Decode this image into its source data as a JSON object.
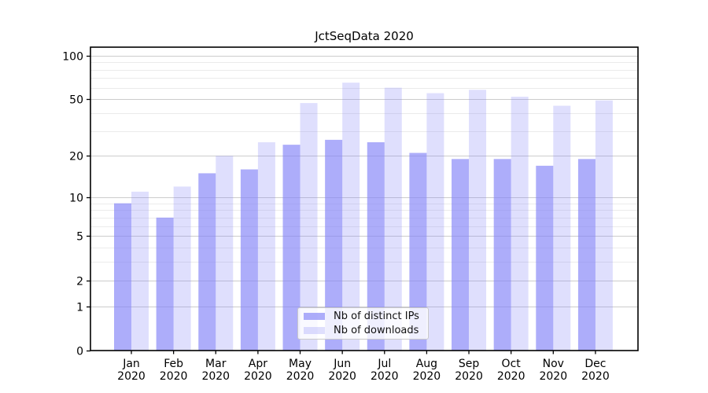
{
  "chart_data": {
    "type": "bar",
    "title": "JctSeqData 2020",
    "categories": [
      "Jan",
      "Feb",
      "Mar",
      "Apr",
      "May",
      "Jun",
      "Jul",
      "Aug",
      "Sep",
      "Oct",
      "Nov",
      "Dec"
    ],
    "x_year_label": "2020",
    "series": [
      {
        "name": "Nb of distinct IPs",
        "color": "rgba(130,130,248,0.66)",
        "values": [
          9,
          7,
          15,
          16,
          24,
          26,
          25,
          21,
          19,
          19,
          17,
          19
        ]
      },
      {
        "name": "Nb of downloads",
        "color": "rgba(130,130,248,0.26)",
        "values": [
          11,
          12,
          20,
          25,
          47,
          65,
          60,
          55,
          58,
          52,
          45,
          49
        ]
      }
    ],
    "y_axis": {
      "scale": "log10(1+y)",
      "ylim": [
        0,
        114
      ],
      "major_ticks": [
        0,
        1,
        2,
        5,
        10,
        20,
        50,
        100
      ],
      "minor_gridlines": [
        3,
        4,
        6,
        7,
        8,
        9,
        30,
        40,
        60,
        70,
        80,
        90
      ]
    },
    "grid": {
      "major_color": "#cccccc",
      "minor_color": "#ebebeb"
    },
    "legend": {
      "position": "lower center"
    },
    "text_color": "#000000",
    "background": "#ffffff"
  }
}
